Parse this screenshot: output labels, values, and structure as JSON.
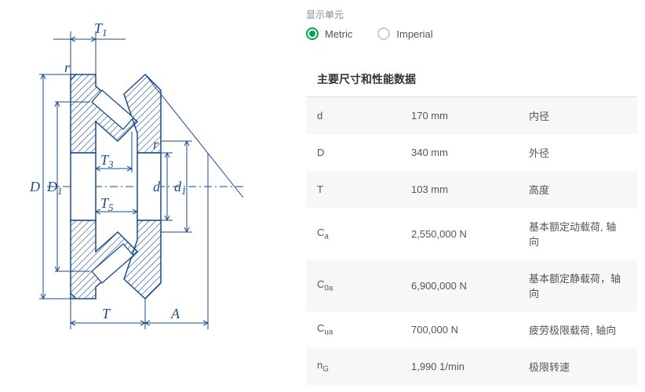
{
  "units": {
    "label": "显示单元",
    "metric": "Metric",
    "imperial": "Imperial"
  },
  "section_title": "主要尺寸和性能数据",
  "specs": [
    {
      "symbol": "d",
      "sub": "",
      "value": "170 mm",
      "desc": "内径"
    },
    {
      "symbol": "D",
      "sub": "",
      "value": "340 mm",
      "desc": "外径"
    },
    {
      "symbol": "T",
      "sub": "",
      "value": "103 mm",
      "desc": "高度"
    },
    {
      "symbol": "C",
      "sub": "a",
      "value": "2,550,000 N",
      "desc": "基本额定动载荷, 轴向"
    },
    {
      "symbol": "C",
      "sub": "0a",
      "value": "6,900,000 N",
      "desc": "基本额定静载荷，轴向"
    },
    {
      "symbol": "C",
      "sub": "ua",
      "value": "700,000 N",
      "desc": "疲劳极限载荷, 轴向"
    },
    {
      "symbol": "n",
      "sub": "G",
      "value": "1,990 1/min",
      "desc": "极限转速"
    }
  ],
  "diagram": {
    "stroke_color": "#1a4b8c",
    "hatch_color": "#1a4b8c",
    "bg_color": "#ffffff",
    "labels": {
      "T1": "T",
      "T1_sub": "1",
      "r": "r",
      "T3": "T",
      "T3_sub": "3",
      "T5": "T",
      "T5_sub": "5",
      "D": "D",
      "D1": "D",
      "D1_sub": "1",
      "d": "d",
      "d1": "d",
      "d1_sub": "1",
      "T": "T",
      "A": "A"
    }
  },
  "colors": {
    "accent": "#00a550",
    "text": "#555555",
    "muted": "#888888",
    "border": "#dddddd",
    "row_alt": "#f7f7f7"
  }
}
